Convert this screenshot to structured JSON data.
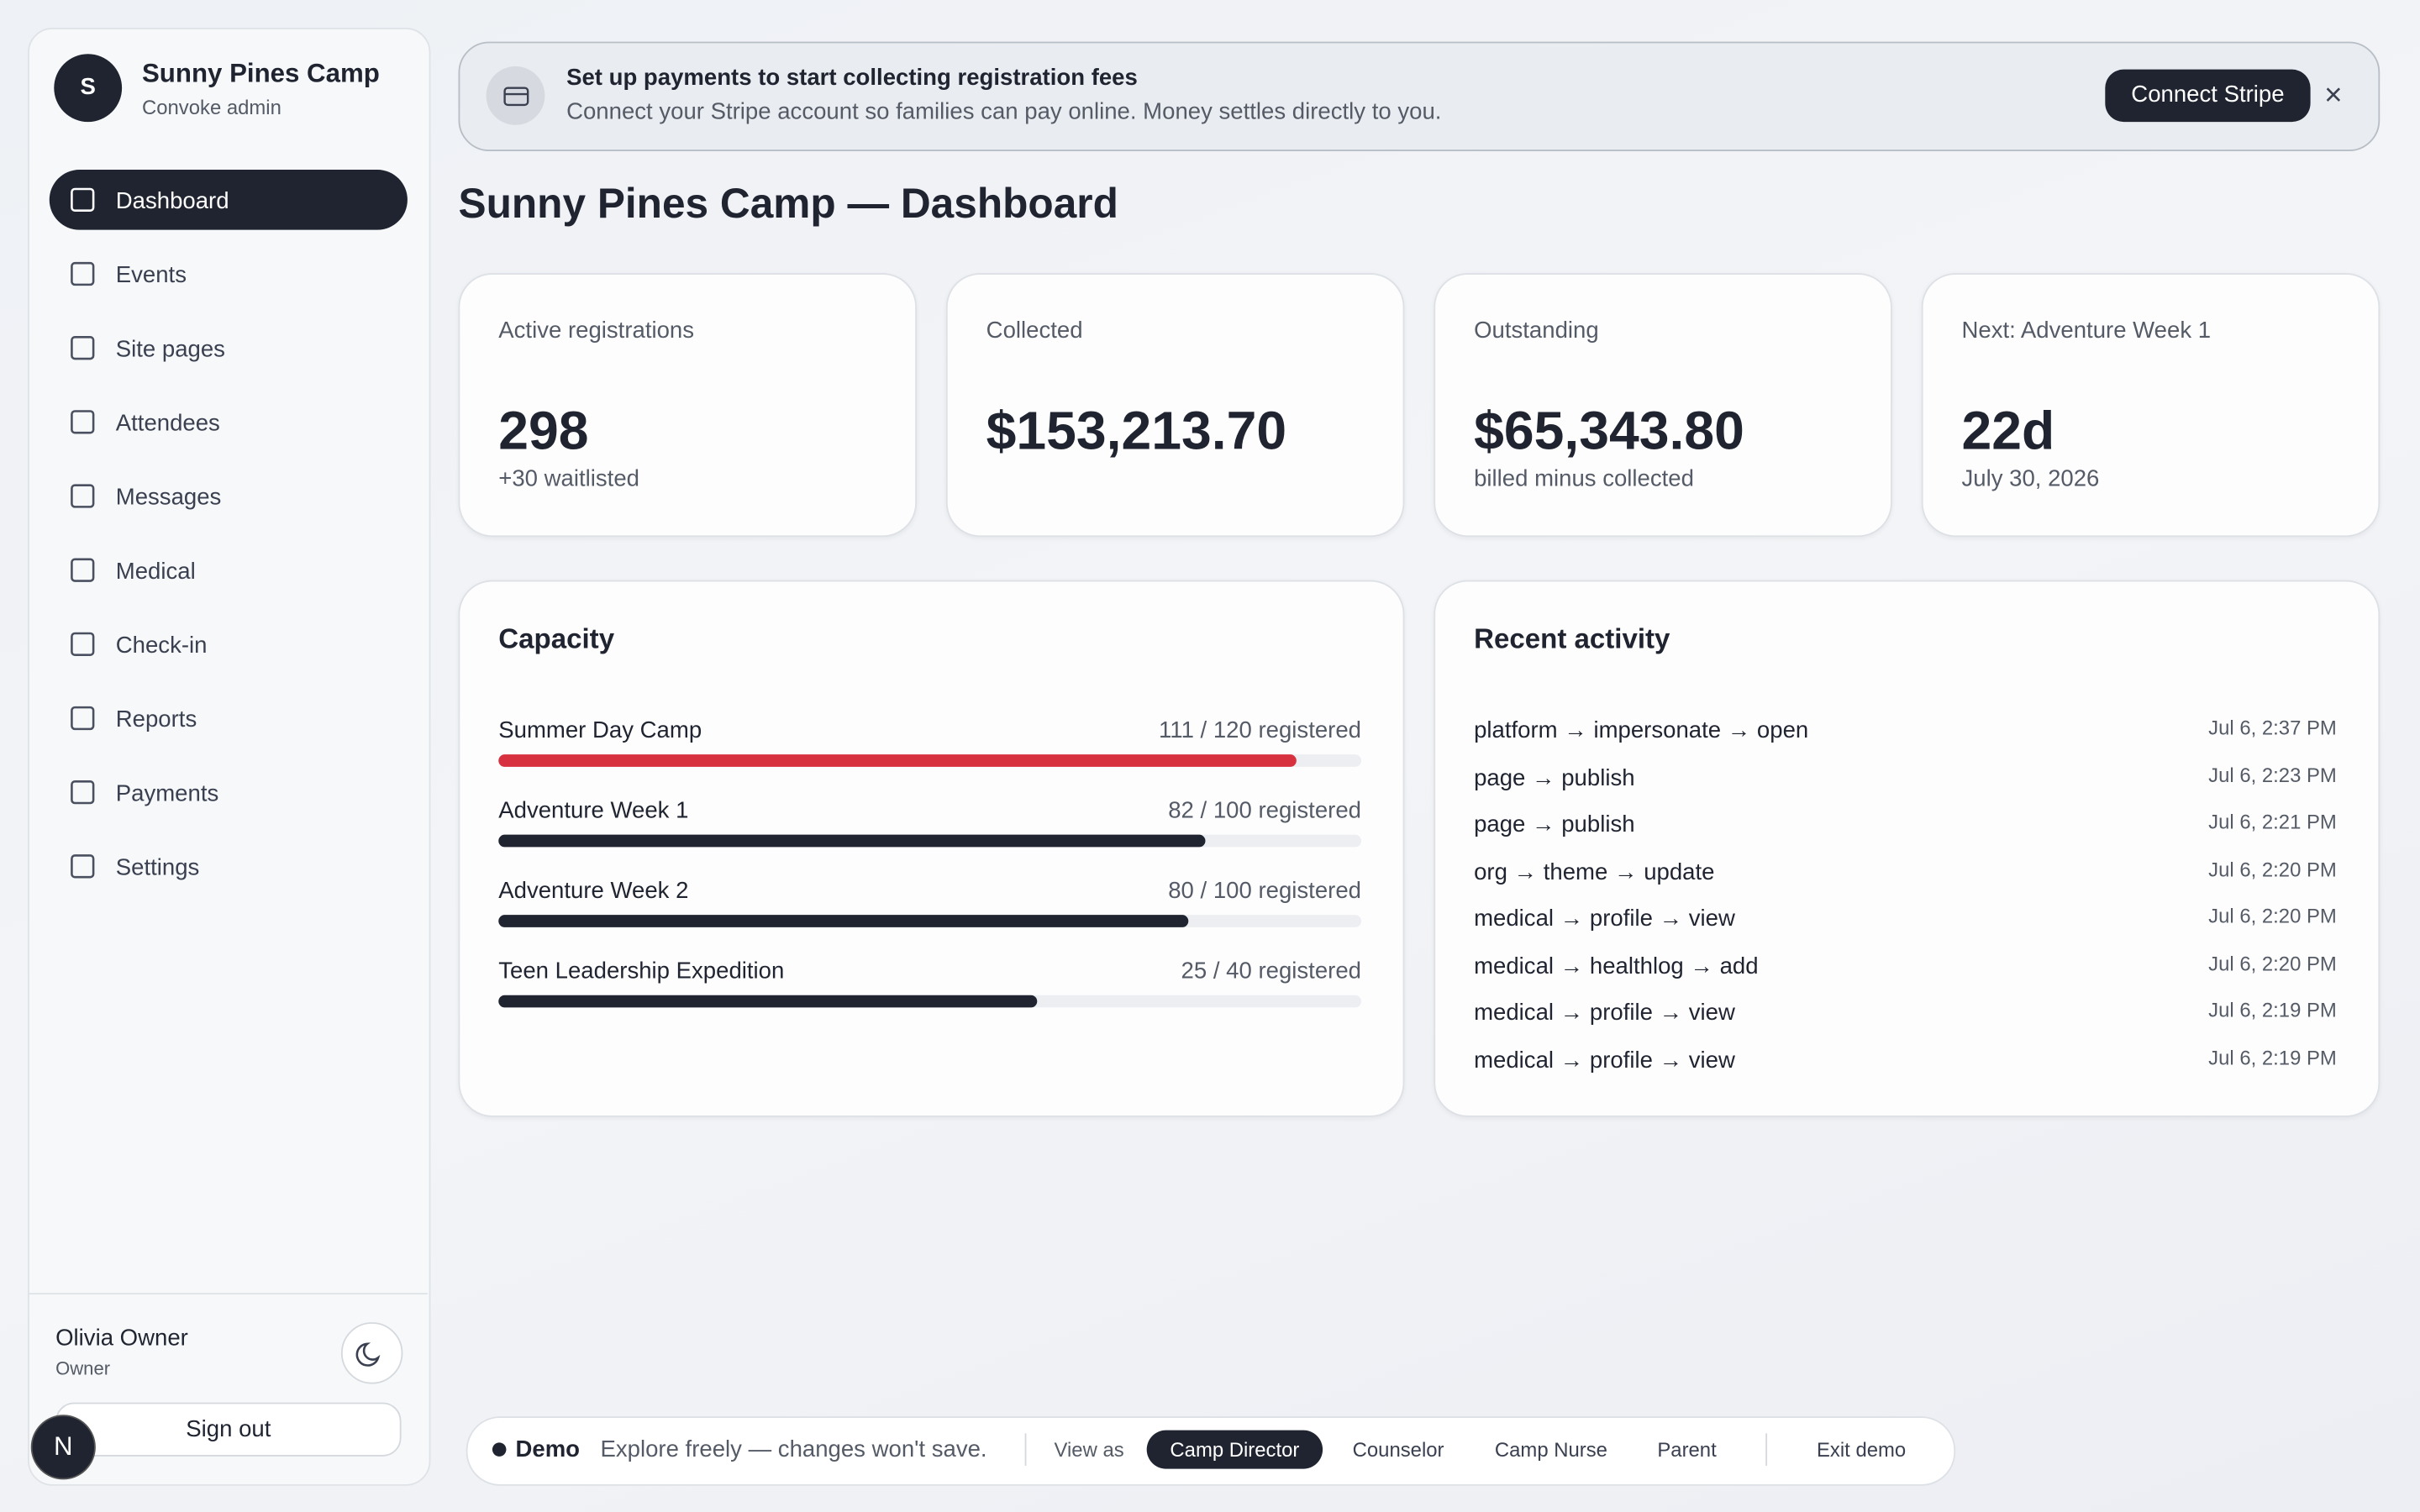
{
  "sidebar": {
    "avatar_initial": "S",
    "org_name": "Sunny Pines Camp",
    "org_role": "Convoke admin",
    "nav": [
      "Dashboard",
      "Events",
      "Site pages",
      "Attendees",
      "Messages",
      "Medical",
      "Check-in",
      "Reports",
      "Payments",
      "Settings"
    ],
    "user": {
      "name": "Olivia Owner",
      "role": "Owner"
    },
    "sign_out": "Sign out",
    "badge": "N"
  },
  "banner": {
    "title": "Set up payments to start collecting registration fees",
    "text": "Connect your Stripe account so families can pay online. Money settles directly to you.",
    "button": "Connect Stripe",
    "close": "×"
  },
  "page_title": "Sunny Pines Camp — Dashboard",
  "stats": [
    {
      "label": "Active registrations",
      "value": "298",
      "sub": "+30 waitlisted"
    },
    {
      "label": "Collected",
      "value": "$153,213.70"
    },
    {
      "label": "Outstanding",
      "value": "$65,343.80",
      "sub": "billed minus collected"
    },
    {
      "label": "Next: Adventure Week 1",
      "value": "22d",
      "sub": "July 30, 2026"
    }
  ],
  "capacity": {
    "title": "Capacity",
    "items": [
      {
        "name": "Summer Day Camp",
        "label": "111 / 120 registered",
        "registered": 111,
        "capacity": 120,
        "color": "#d7303f"
      },
      {
        "name": "Adventure Week 1",
        "label": "82 / 100 registered",
        "registered": 82,
        "capacity": 100,
        "color": "#1f2430"
      },
      {
        "name": "Adventure Week 2",
        "label": "80 / 100 registered",
        "registered": 80,
        "capacity": 100,
        "color": "#1f2430"
      },
      {
        "name": "Teen Leadership Expedition",
        "label": "25 / 40 registered",
        "registered": 25,
        "capacity": 40,
        "color": "#1f2430"
      }
    ]
  },
  "activity": {
    "title": "Recent activity",
    "items": [
      {
        "action": "platform → impersonate → open",
        "time": "Jul 6, 2:37 PM"
      },
      {
        "action": "page → publish",
        "time": "Jul 6, 2:23 PM"
      },
      {
        "action": "page → publish",
        "time": "Jul 6, 2:21 PM"
      },
      {
        "action": "org → theme → update",
        "time": "Jul 6, 2:20 PM"
      },
      {
        "action": "medical → profile → view",
        "time": "Jul 6, 2:20 PM"
      },
      {
        "action": "medical → healthlog → add",
        "time": "Jul 6, 2:20 PM"
      },
      {
        "action": "medical → profile → view",
        "time": "Jul 6, 2:19 PM"
      },
      {
        "action": "medical → profile → view",
        "time": "Jul 6, 2:19 PM"
      }
    ]
  },
  "demo": {
    "badge": "Demo",
    "text": "Explore freely — changes won't save.",
    "view_as": "View as",
    "roles": [
      "Camp Director",
      "Counselor",
      "Camp Nurse",
      "Parent"
    ],
    "exit": "Exit demo"
  }
}
